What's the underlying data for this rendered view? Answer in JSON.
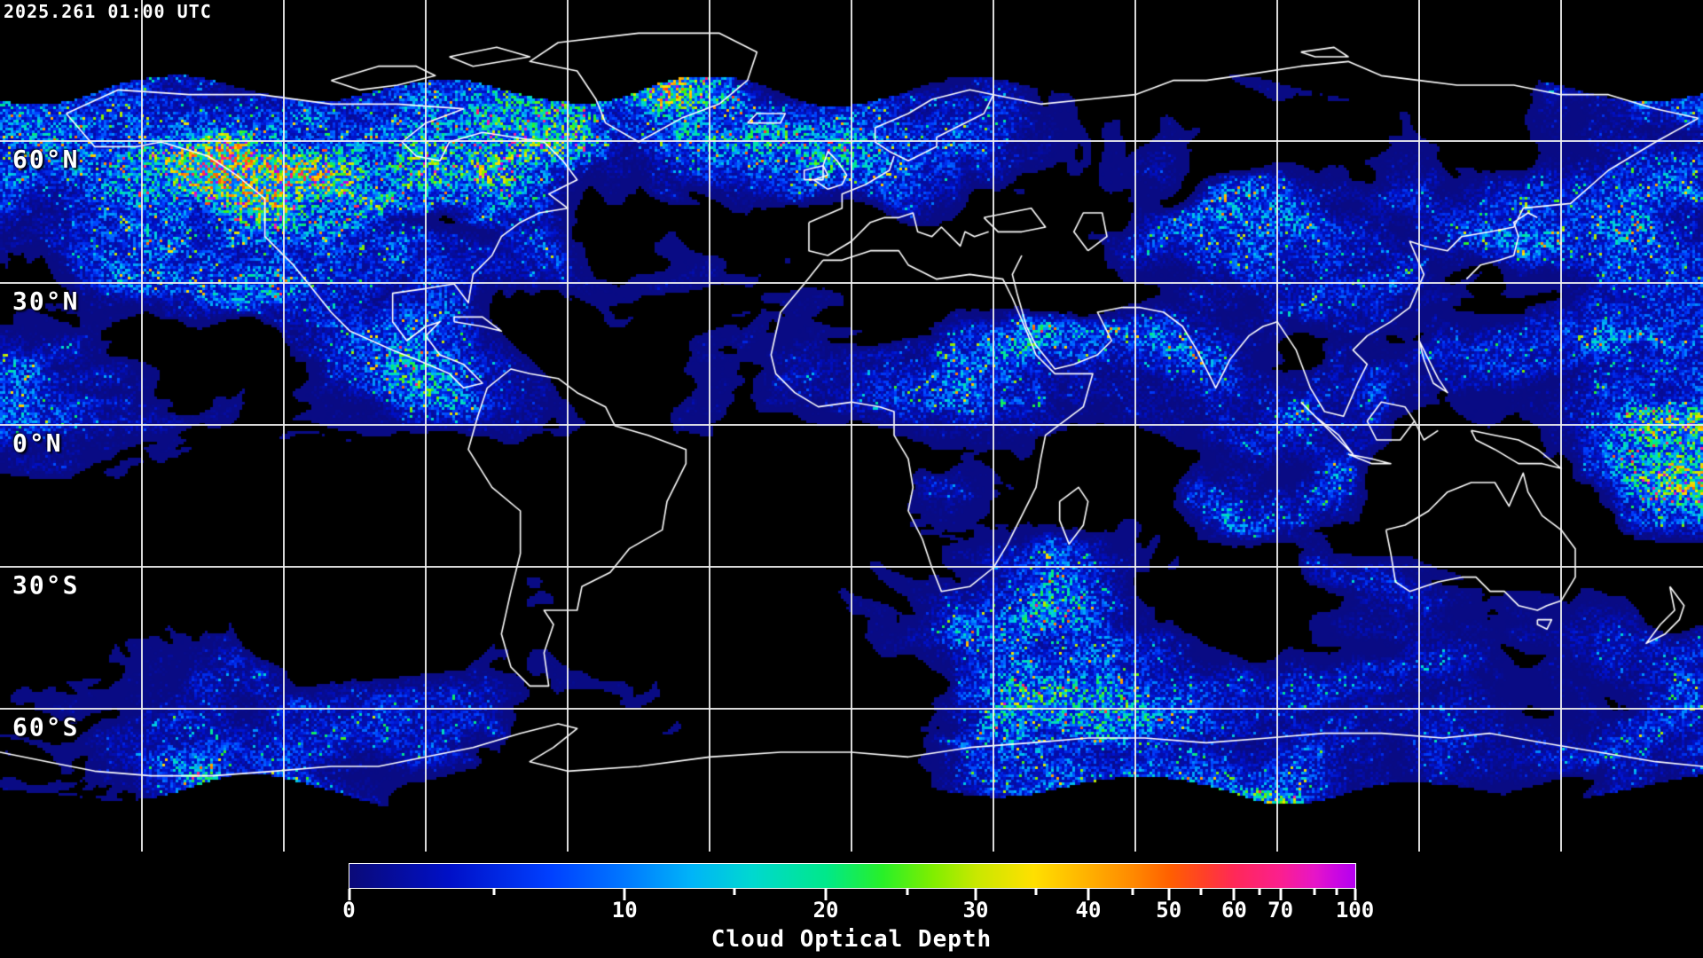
{
  "header": {
    "timestamp": "2025.261 01:00 UTC"
  },
  "map": {
    "background": "#000000",
    "grid_color": "#f0f0f0",
    "coastline_color": "#ffffff",
    "graticule": {
      "lon_step_deg": 30,
      "lat_step_deg": 30
    },
    "latitude_labels": [
      {
        "text": "60°N",
        "lat": 60
      },
      {
        "text": "30°N",
        "lat": 30
      },
      {
        "text": "0°N",
        "lat": 0
      },
      {
        "text": "30°S",
        "lat": -30
      },
      {
        "text": "60°S",
        "lat": -60
      }
    ]
  },
  "colorbar": {
    "title": "Cloud Optical Depth",
    "ticks": [
      {
        "label": "0",
        "value": 0,
        "pct": 0
      },
      {
        "label": "10",
        "value": 10,
        "pct": 27.4
      },
      {
        "label": "20",
        "value": 20,
        "pct": 47.4
      },
      {
        "label": "30",
        "value": 30,
        "pct": 62.3
      },
      {
        "label": "40",
        "value": 40,
        "pct": 73.5
      },
      {
        "label": "50",
        "value": 50,
        "pct": 81.5
      },
      {
        "label": "60",
        "value": 60,
        "pct": 88.0
      },
      {
        "label": "70",
        "value": 70,
        "pct": 92.6
      },
      {
        "label": "100",
        "value": 100,
        "pct": 100
      }
    ],
    "minor_ticks": [
      {
        "value": 5,
        "pct": 14.4
      },
      {
        "value": 15,
        "pct": 38.3
      },
      {
        "value": 25,
        "pct": 55.5
      },
      {
        "value": 35,
        "pct": 68.3
      },
      {
        "value": 45,
        "pct": 77.9
      },
      {
        "value": 55,
        "pct": 84.7
      },
      {
        "value": 65,
        "pct": 90.5
      },
      {
        "value": 80,
        "pct": 96.0
      },
      {
        "value": 90,
        "pct": 98.2
      }
    ],
    "scale_points": [
      {
        "value": 0,
        "pct": 0
      },
      {
        "value": 5,
        "pct": 14.4
      },
      {
        "value": 10,
        "pct": 27.4
      },
      {
        "value": 15,
        "pct": 38.3
      },
      {
        "value": 20,
        "pct": 47.4
      },
      {
        "value": 25,
        "pct": 55.5
      },
      {
        "value": 30,
        "pct": 62.3
      },
      {
        "value": 35,
        "pct": 68.3
      },
      {
        "value": 40,
        "pct": 73.5
      },
      {
        "value": 45,
        "pct": 77.9
      },
      {
        "value": 50,
        "pct": 81.5
      },
      {
        "value": 55,
        "pct": 84.7
      },
      {
        "value": 60,
        "pct": 88.0
      },
      {
        "value": 65,
        "pct": 90.5
      },
      {
        "value": 70,
        "pct": 92.6
      },
      {
        "value": 80,
        "pct": 96.0
      },
      {
        "value": 90,
        "pct": 98.2
      },
      {
        "value": 100,
        "pct": 100
      }
    ],
    "gradient_stops": [
      {
        "pct": 0,
        "color": "#0a0a78"
      },
      {
        "pct": 10,
        "color": "#0010c8"
      },
      {
        "pct": 20,
        "color": "#0040ff"
      },
      {
        "pct": 27.4,
        "color": "#0078ff"
      },
      {
        "pct": 34,
        "color": "#00b4f8"
      },
      {
        "pct": 40,
        "color": "#00d8d0"
      },
      {
        "pct": 47.4,
        "color": "#00e88a"
      },
      {
        "pct": 53,
        "color": "#28f028"
      },
      {
        "pct": 58,
        "color": "#80ee00"
      },
      {
        "pct": 62.3,
        "color": "#c8e800"
      },
      {
        "pct": 68,
        "color": "#ffe000"
      },
      {
        "pct": 73.5,
        "color": "#ffb000"
      },
      {
        "pct": 78,
        "color": "#ff8800"
      },
      {
        "pct": 81.5,
        "color": "#ff6000"
      },
      {
        "pct": 85,
        "color": "#ff4028"
      },
      {
        "pct": 88,
        "color": "#ff2858"
      },
      {
        "pct": 92.6,
        "color": "#fb1f8f"
      },
      {
        "pct": 96,
        "color": "#e615c8"
      },
      {
        "pct": 98,
        "color": "#cc08e0"
      },
      {
        "pct": 100,
        "color": "#b400f0"
      }
    ]
  }
}
